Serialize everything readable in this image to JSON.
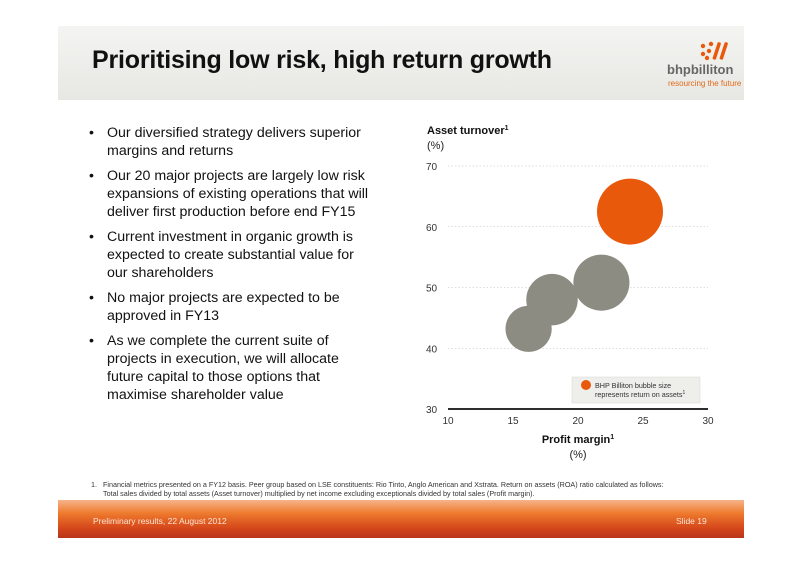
{
  "title": "Prioritising low risk, high return growth",
  "logo": {
    "name": "bhpbilliton",
    "tagline": "resourcing the future"
  },
  "bullets": [
    "Our diversified strategy delivers superior margins and returns",
    "Our 20 major projects are largely low risk expansions of existing operations that will deliver first production before end FY15",
    "Current investment in organic growth is expected to create substantial value for our shareholders",
    "No major projects are expected to be approved in FY13",
    "As we complete the current suite of projects in execution, we will allocate future capital to those options that maximise shareholder value"
  ],
  "chart_data": {
    "type": "scatter",
    "ylabel": "Asset turnover",
    "ylabel_sup": "1",
    "ylabel_unit": "(%)",
    "xlabel": "Profit margin",
    "xlabel_sup": "1",
    "xlabel_unit": "(%)",
    "xlim": [
      10,
      30
    ],
    "ylim": [
      30,
      70
    ],
    "xticks": [
      "10",
      "15",
      "20",
      "25",
      "30"
    ],
    "yticks": [
      "30",
      "40",
      "50",
      "60",
      "70"
    ],
    "grid": true,
    "legend_text": "BHP Billiton bubble size represents return on assets",
    "legend_sup": "1",
    "legend_placement": "bottom-right",
    "points": [
      {
        "x": 24.0,
        "y": 62.5,
        "size": 1.0,
        "color": "#e8590c",
        "highlight": true
      },
      {
        "x": 21.8,
        "y": 50.8,
        "size": 0.85,
        "color": "#8c8c82"
      },
      {
        "x": 18.0,
        "y": 48.0,
        "size": 0.78,
        "color": "#8c8c82"
      },
      {
        "x": 16.2,
        "y": 43.2,
        "size": 0.7,
        "color": "#8c8c82"
      }
    ]
  },
  "footnote": {
    "number": "1.",
    "line1": "Financial metrics presented on a FY12 basis. Peer group based on LSE constituents: Rio Tinto, Anglo American and Xstrata. Return on assets (ROA) ratio calculated as follows:",
    "line2": "Total sales divided by total assets (Asset turnover) multiplied by net income excluding exceptionals divided by total sales (Profit margin)."
  },
  "footer": {
    "left": "Preliminary results, 22 August 2012",
    "right": "Slide 19"
  },
  "colors": {
    "accent": "#e8590c",
    "bubble_grey": "#8c8c82",
    "footer_orange": "#d4461a"
  },
  "icons": {
    "bullet": "•"
  }
}
